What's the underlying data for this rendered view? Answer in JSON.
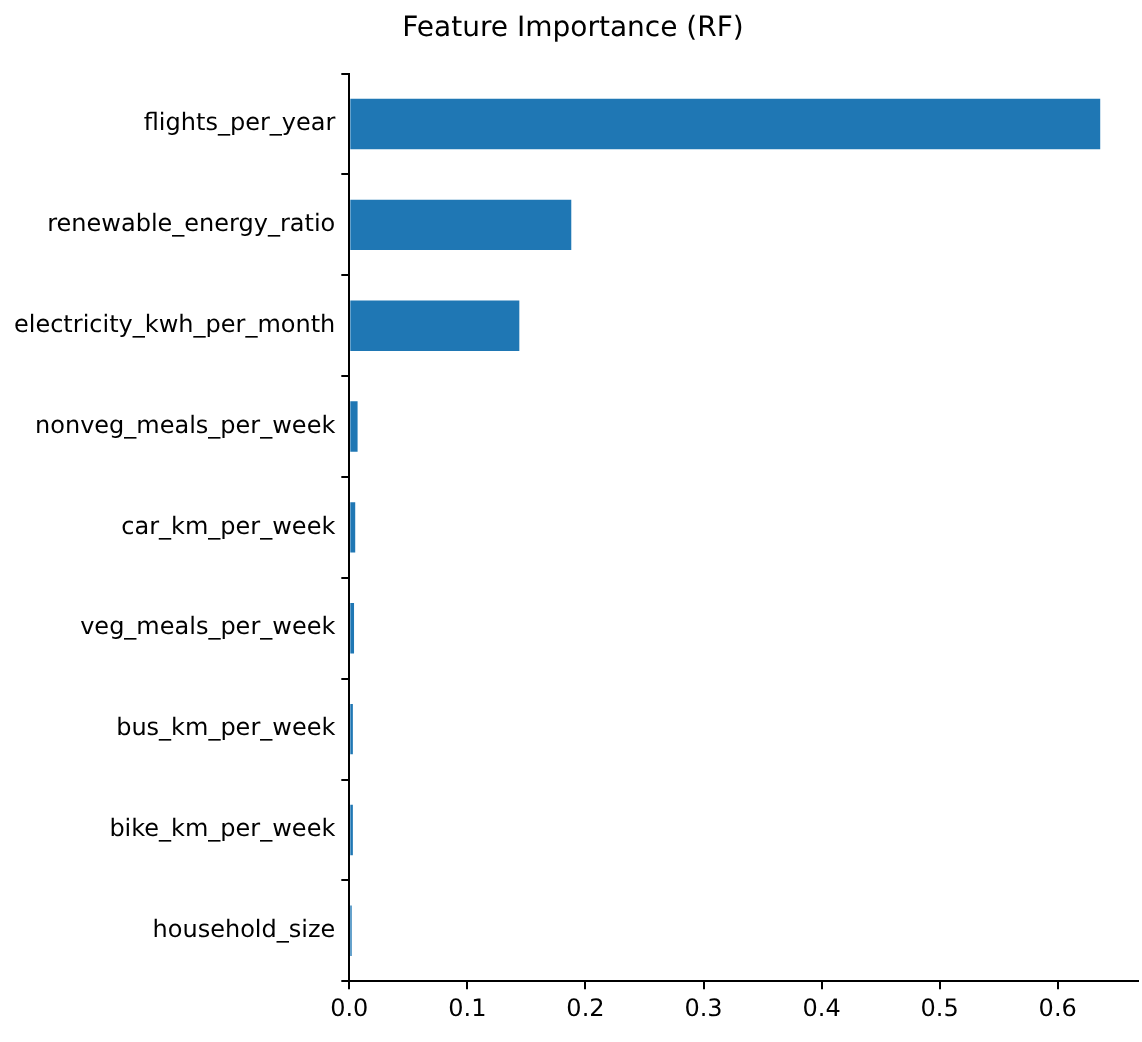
{
  "chart_data": {
    "type": "bar",
    "orientation": "horizontal",
    "title": "Feature Importance (RF)",
    "categories": [
      "flights_per_year",
      "renewable_energy_ratio",
      "electricity_kwh_per_month",
      "nonveg_meals_per_week",
      "car_km_per_week",
      "veg_meals_per_week",
      "bus_km_per_week",
      "bike_km_per_week",
      "household_size"
    ],
    "values": [
      0.636,
      0.188,
      0.144,
      0.007,
      0.005,
      0.004,
      0.003,
      0.003,
      0.002
    ],
    "color": "#1f77b4",
    "xlim": [
      0,
      0.668
    ],
    "xticks": [
      {
        "value": 0,
        "label": "0.0"
      },
      0.1,
      0.2,
      0.3,
      0.4,
      0.5,
      0.6
    ],
    "grid": false,
    "legend": false
  }
}
